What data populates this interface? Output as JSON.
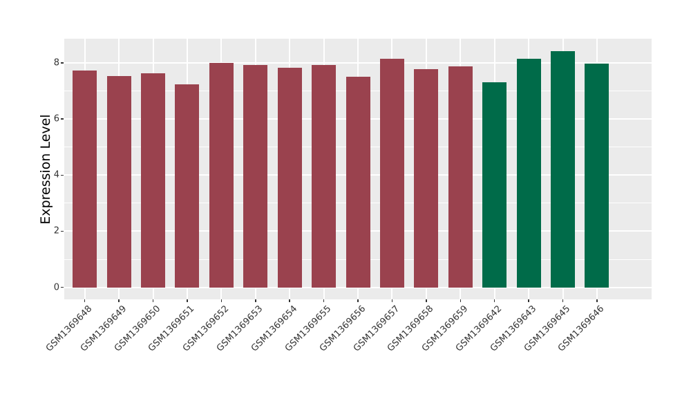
{
  "figure": {
    "background": "#FFFFFF",
    "panel_background": "#EBEBEB",
    "gridline_color": "#FFFFFF",
    "tick_color": "#333333",
    "bar_color_maroon": "#9A424E",
    "bar_color_green": "#006B49"
  },
  "chart_data": {
    "type": "bar",
    "title": "",
    "xlabel": "",
    "ylabel": "Expression Level",
    "y_ticks": [
      0,
      2,
      4,
      6,
      8
    ],
    "y_minor_ticks": [
      1,
      3,
      5,
      7
    ],
    "ylim": [
      -0.43,
      8.87
    ],
    "grid": "horizontal major+minor, vertical major at category centers",
    "legend_position": "none",
    "categories": [
      "GSM1369648",
      "GSM1369649",
      "GSM1369650",
      "GSM1369651",
      "GSM1369652",
      "GSM1369653",
      "GSM1369654",
      "GSM1369655",
      "GSM1369656",
      "GSM1369657",
      "GSM1369658",
      "GSM1369659",
      "GSM1369642",
      "GSM1369643",
      "GSM1369645",
      "GSM1369646"
    ],
    "values": [
      7.73,
      7.53,
      7.64,
      7.24,
      8.0,
      7.93,
      7.83,
      7.93,
      7.51,
      8.16,
      7.79,
      7.87,
      7.32,
      8.14,
      8.43,
      7.97
    ],
    "colors": [
      "#9A424E",
      "#9A424E",
      "#9A424E",
      "#9A424E",
      "#9A424E",
      "#9A424E",
      "#9A424E",
      "#9A424E",
      "#9A424E",
      "#9A424E",
      "#9A424E",
      "#9A424E",
      "#006B49",
      "#006B49",
      "#006B49",
      "#006B49"
    ]
  }
}
